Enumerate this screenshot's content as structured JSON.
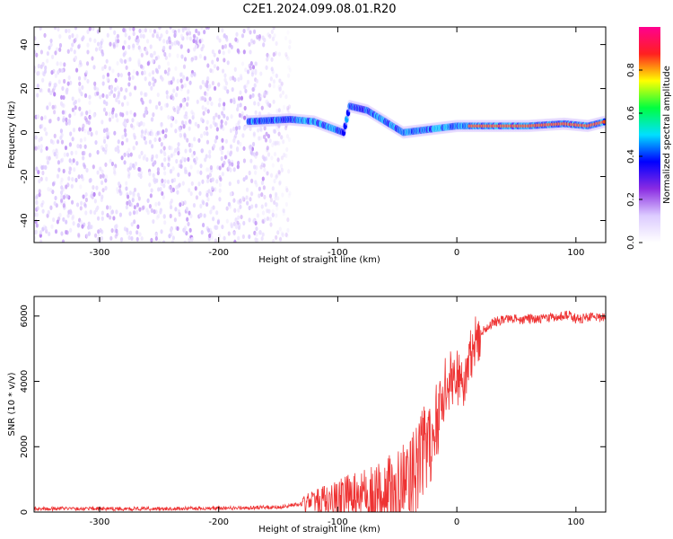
{
  "title": "C2E1.2024.099.08.01.R20",
  "colors": {
    "snr_line": "#ee3333",
    "colormap": [
      "#ffffff",
      "#dccbff",
      "#8a2be2",
      "#0000ff",
      "#00e0ff",
      "#00ff40",
      "#ffff00",
      "#ff2020",
      "#ff0090"
    ]
  },
  "chart_data": [
    {
      "type": "heatmap",
      "xlabel": "Height of straight line (km)",
      "ylabel": "Frequency (Hz)",
      "xlim": [
        -355,
        125
      ],
      "ylim": [
        -50,
        48
      ],
      "xticks": [
        -300,
        -200,
        -100,
        0,
        100
      ],
      "yticks": [
        -40,
        -20,
        0,
        20,
        40
      ],
      "colorbar": {
        "label": "Normalized spectral amplitude",
        "range": [
          0.0,
          1.0
        ],
        "ticks": [
          0.0,
          0.2,
          0.4,
          0.6,
          0.8
        ]
      },
      "features": [
        {
          "region": "noise",
          "x_range": [
            -355,
            -140
          ],
          "y_range": [
            -50,
            48
          ],
          "amplitude": 0.1
        },
        {
          "region": "signal_track",
          "points": [
            [
              -175,
              5
            ],
            [
              -140,
              6
            ],
            [
              -120,
              5
            ],
            [
              -105,
              2
            ],
            [
              -95,
              0
            ],
            [
              -90,
              12
            ],
            [
              -75,
              10
            ],
            [
              -60,
              5
            ],
            [
              -45,
              0
            ],
            [
              -30,
              1
            ],
            [
              -15,
              2
            ],
            [
              0,
              3
            ],
            [
              30,
              3
            ],
            [
              60,
              3
            ],
            [
              90,
              4
            ],
            [
              110,
              3
            ],
            [
              125,
              5
            ]
          ],
          "amplitude": 0.85
        }
      ]
    },
    {
      "type": "line",
      "xlabel": "Height of straight line (km)",
      "ylabel": "SNR (10 * v/v)",
      "xlim": [
        -355,
        125
      ],
      "ylim": [
        0,
        6600
      ],
      "xticks": [
        -300,
        -200,
        -100,
        0,
        100
      ],
      "yticks": [
        0,
        2000,
        4000,
        6000
      ],
      "series": [
        {
          "x": [
            -355,
            -300,
            -250,
            -200,
            -150,
            -130,
            -110,
            -90,
            -70,
            -50,
            -40,
            -30,
            -20,
            -15,
            -10,
            -5,
            0,
            5,
            10,
            15,
            20,
            30,
            40,
            60,
            80,
            95,
            100,
            110,
            125
          ],
          "y": [
            100,
            100,
            100,
            120,
            150,
            250,
            350,
            450,
            500,
            700,
            1000,
            1600,
            2400,
            3200,
            3800,
            4100,
            4100,
            3800,
            4500,
            5200,
            5500,
            5800,
            5900,
            5900,
            5950,
            6050,
            5900,
            5950,
            5950
          ]
        }
      ]
    }
  ]
}
